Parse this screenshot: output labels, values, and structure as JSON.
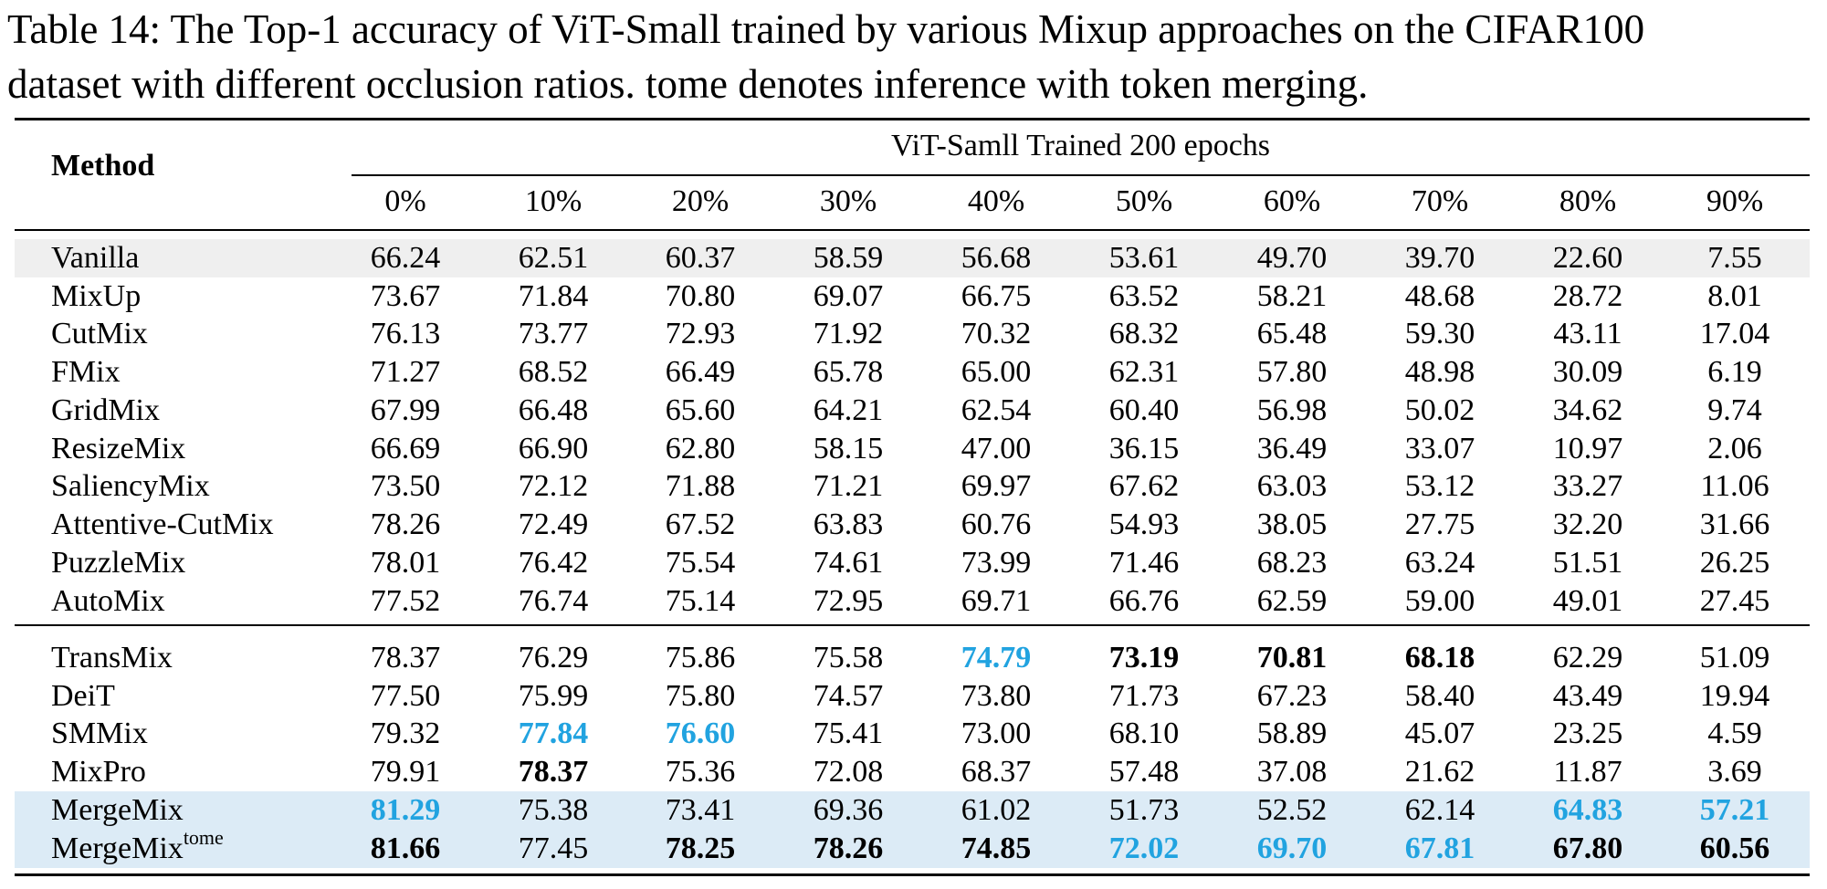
{
  "caption": {
    "line1": "Table 14: The Top-1 accuracy of ViT-Small trained by various Mixup approaches on the CIFAR100",
    "line2": "dataset with different occlusion ratios. tome denotes inference with token merging."
  },
  "table": {
    "method_header": "Method",
    "group_header": "ViT-Samll Trained 200 epochs",
    "columns": [
      "0%",
      "10%",
      "20%",
      "30%",
      "40%",
      "50%",
      "60%",
      "70%",
      "80%",
      "90%"
    ],
    "rows": [
      {
        "method": "Vanilla",
        "shade": "gray",
        "values": [
          "66.24",
          "62.51",
          "60.37",
          "58.59",
          "56.68",
          "53.61",
          "49.70",
          "39.70",
          "22.60",
          "7.55"
        ],
        "styles": [
          "",
          "",
          "",
          "",
          "",
          "",
          "",
          "",
          "",
          ""
        ]
      },
      {
        "method": "MixUp",
        "values": [
          "73.67",
          "71.84",
          "70.80",
          "69.07",
          "66.75",
          "63.52",
          "58.21",
          "48.68",
          "28.72",
          "8.01"
        ],
        "styles": [
          "",
          "",
          "",
          "",
          "",
          "",
          "",
          "",
          "",
          ""
        ]
      },
      {
        "method": "CutMix",
        "values": [
          "76.13",
          "73.77",
          "72.93",
          "71.92",
          "70.32",
          "68.32",
          "65.48",
          "59.30",
          "43.11",
          "17.04"
        ],
        "styles": [
          "",
          "",
          "",
          "",
          "",
          "",
          "",
          "",
          "",
          ""
        ]
      },
      {
        "method": "FMix",
        "values": [
          "71.27",
          "68.52",
          "66.49",
          "65.78",
          "65.00",
          "62.31",
          "57.80",
          "48.98",
          "30.09",
          "6.19"
        ],
        "styles": [
          "",
          "",
          "",
          "",
          "",
          "",
          "",
          "",
          "",
          ""
        ]
      },
      {
        "method": "GridMix",
        "values": [
          "67.99",
          "66.48",
          "65.60",
          "64.21",
          "62.54",
          "60.40",
          "56.98",
          "50.02",
          "34.62",
          "9.74"
        ],
        "styles": [
          "",
          "",
          "",
          "",
          "",
          "",
          "",
          "",
          "",
          ""
        ]
      },
      {
        "method": "ResizeMix",
        "values": [
          "66.69",
          "66.90",
          "62.80",
          "58.15",
          "47.00",
          "36.15",
          "36.49",
          "33.07",
          "10.97",
          "2.06"
        ],
        "styles": [
          "",
          "",
          "",
          "",
          "",
          "",
          "",
          "",
          "",
          ""
        ]
      },
      {
        "method": "SaliencyMix",
        "values": [
          "73.50",
          "72.12",
          "71.88",
          "71.21",
          "69.97",
          "67.62",
          "63.03",
          "53.12",
          "33.27",
          "11.06"
        ],
        "styles": [
          "",
          "",
          "",
          "",
          "",
          "",
          "",
          "",
          "",
          ""
        ]
      },
      {
        "method": "Attentive-CutMix",
        "values": [
          "78.26",
          "72.49",
          "67.52",
          "63.83",
          "60.76",
          "54.93",
          "38.05",
          "27.75",
          "32.20",
          "31.66"
        ],
        "styles": [
          "",
          "",
          "",
          "",
          "",
          "",
          "",
          "",
          "",
          ""
        ]
      },
      {
        "method": "PuzzleMix",
        "values": [
          "78.01",
          "76.42",
          "75.54",
          "74.61",
          "73.99",
          "71.46",
          "68.23",
          "63.24",
          "51.51",
          "26.25"
        ],
        "styles": [
          "",
          "",
          "",
          "",
          "",
          "",
          "",
          "",
          "",
          ""
        ]
      },
      {
        "method": "AutoMix",
        "values": [
          "77.52",
          "76.74",
          "75.14",
          "72.95",
          "69.71",
          "66.76",
          "62.59",
          "59.00",
          "49.01",
          "27.45"
        ],
        "styles": [
          "",
          "",
          "",
          "",
          "",
          "",
          "",
          "",
          "",
          ""
        ]
      },
      {
        "method": "TransMix",
        "values": [
          "78.37",
          "76.29",
          "75.86",
          "75.58",
          "74.79",
          "73.19",
          "70.81",
          "68.18",
          "62.29",
          "51.09"
        ],
        "styles": [
          "",
          "",
          "",
          "",
          "second",
          "best",
          "best",
          "best",
          "",
          ""
        ]
      },
      {
        "method": "DeiT",
        "values": [
          "77.50",
          "75.99",
          "75.80",
          "74.57",
          "73.80",
          "71.73",
          "67.23",
          "58.40",
          "43.49",
          "19.94"
        ],
        "styles": [
          "",
          "",
          "",
          "",
          "",
          "",
          "",
          "",
          "",
          ""
        ]
      },
      {
        "method": "SMMix",
        "values": [
          "79.32",
          "77.84",
          "76.60",
          "75.41",
          "73.00",
          "68.10",
          "58.89",
          "45.07",
          "23.25",
          "4.59"
        ],
        "styles": [
          "",
          "second",
          "second",
          "",
          "",
          "",
          "",
          "",
          "",
          ""
        ]
      },
      {
        "method": "MixPro",
        "values": [
          "79.91",
          "78.37",
          "75.36",
          "72.08",
          "68.37",
          "57.48",
          "37.08",
          "21.62",
          "11.87",
          "3.69"
        ],
        "styles": [
          "",
          "best",
          "",
          "",
          "",
          "",
          "",
          "",
          "",
          ""
        ]
      },
      {
        "method": "MergeMix",
        "shade": "blue",
        "values": [
          "81.29",
          "75.38",
          "73.41",
          "69.36",
          "61.02",
          "51.73",
          "52.52",
          "62.14",
          "64.83",
          "57.21"
        ],
        "styles": [
          "second",
          "",
          "",
          "",
          "",
          "",
          "",
          "",
          "second",
          "second"
        ]
      },
      {
        "method": "MergeMix",
        "sup": "tome",
        "shade": "blue",
        "values": [
          "81.66",
          "77.45",
          "78.25",
          "78.26",
          "74.85",
          "72.02",
          "69.70",
          "67.81",
          "67.80",
          "60.56"
        ],
        "styles": [
          "best",
          "",
          "best",
          "best",
          "best",
          "second",
          "second",
          "second",
          "best",
          "best"
        ]
      }
    ]
  }
}
